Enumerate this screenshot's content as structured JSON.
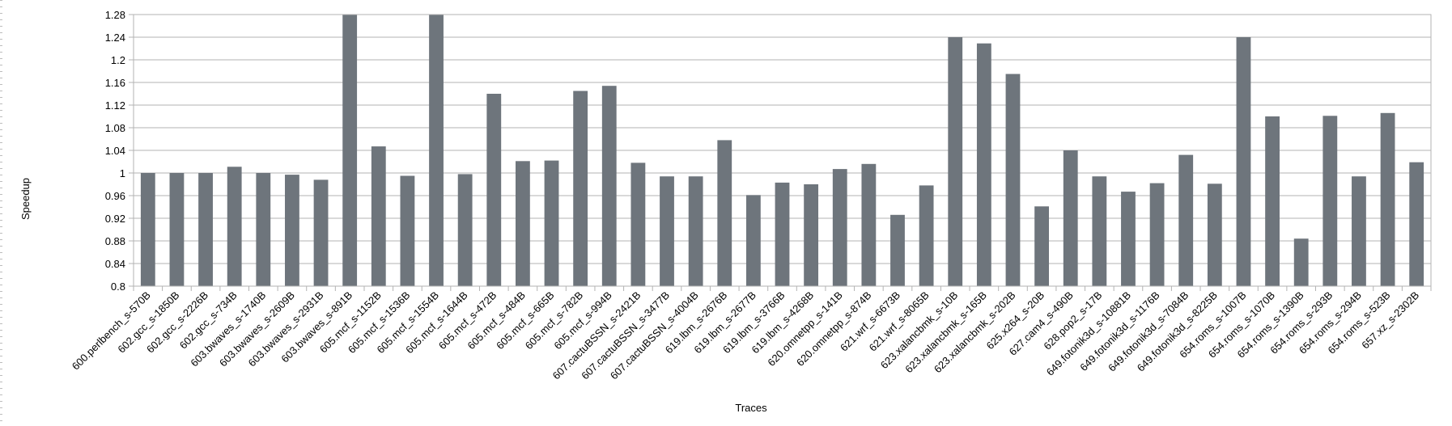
{
  "chart_data": {
    "type": "bar",
    "xlabel": "Traces",
    "ylabel": "Speedup",
    "ylim": [
      0.8,
      1.28
    ],
    "yticks": [
      "0.8",
      "0.84",
      "0.88",
      "0.92",
      "0.96",
      "1",
      "1.04",
      "1.08",
      "1.12",
      "1.16",
      "1.2",
      "1.24",
      "1.28"
    ],
    "grid": true,
    "bar_color": "#6e757c",
    "categories": [
      "600.perlbench_s-570B",
      "602.gcc_s-1850B",
      "602.gcc_s-2226B",
      "602.gcc_s-734B",
      "603.bwaves_s-1740B",
      "603.bwaves_s-2609B",
      "603.bwaves_s-2931B",
      "603.bwaves_s-891B",
      "605.mcf_s-1152B",
      "605.mcf_s-1536B",
      "605.mcf_s-1554B",
      "605.mcf_s-1644B",
      "605.mcf_s-472B",
      "605.mcf_s-484B",
      "605.mcf_s-665B",
      "605.mcf_s-782B",
      "605.mcf_s-994B",
      "607.cactuBSSN_s-2421B",
      "607.cactuBSSN_s-3477B",
      "607.cactuBSSN_s-4004B",
      "619.lbm_s-2676B",
      "619.lbm_s-2677B",
      "619.lbm_s-3766B",
      "619.lbm_s-4268B",
      "620.omnetpp_s-141B",
      "620.omnetpp_s-874B",
      "621.wrf_s-6673B",
      "621.wrf_s-8065B",
      "623.xalancbmk_s-10B",
      "623.xalancbmk_s-165B",
      "623.xalancbmk_s-202B",
      "625.x264_s-20B",
      "627.cam4_s-490B",
      "628.pop2_s-17B",
      "649.fotonik3d_s-10881B",
      "649.fotonik3d_s-1176B",
      "649.fotonik3d_s-7084B",
      "649.fotonik3d_s-8225B",
      "654.roms_s-1007B",
      "654.roms_s-1070B",
      "654.roms_s-1390B",
      "654.roms_s-293B",
      "654.roms_s-294B",
      "654.roms_s-523B",
      "657.xz_s-2302B"
    ],
    "values": [
      1.0,
      1.0,
      1.0,
      1.011,
      1.0,
      0.997,
      0.988,
      1.28,
      1.047,
      0.995,
      1.28,
      0.998,
      1.14,
      1.021,
      1.022,
      1.145,
      1.154,
      1.018,
      0.994,
      0.994,
      1.058,
      0.961,
      0.983,
      0.98,
      1.007,
      1.016,
      0.926,
      0.978,
      1.24,
      1.229,
      1.175,
      0.941,
      1.04,
      0.994,
      0.967,
      0.982,
      1.032,
      0.981,
      1.24,
      1.1,
      0.884,
      1.101,
      0.994,
      1.106,
      1.019
    ]
  }
}
